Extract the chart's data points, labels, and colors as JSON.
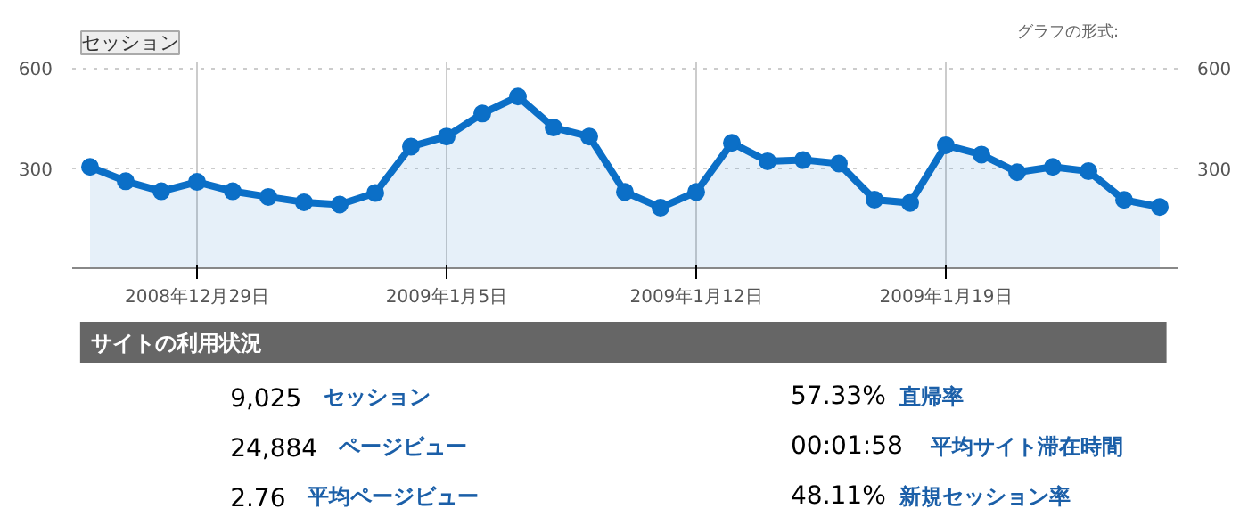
{
  "chart_data": [
    {
      "type": "area",
      "title": "セッション",
      "annotations": [
        "グラフの形式:"
      ],
      "x": [
        "2008-12-26",
        "2008-12-27",
        "2008-12-28",
        "2008-12-29",
        "2008-12-30",
        "2008-12-31",
        "2009-01-01",
        "2009-01-02",
        "2009-01-03",
        "2009-01-04",
        "2009-01-05",
        "2009-01-06",
        "2009-01-07",
        "2009-01-08",
        "2009-01-09",
        "2009-01-10",
        "2009-01-11",
        "2009-01-12",
        "2009-01-13",
        "2009-01-14",
        "2009-01-15",
        "2009-01-16",
        "2009-01-17",
        "2009-01-18",
        "2009-01-19",
        "2009-01-20",
        "2009-01-21",
        "2009-01-22",
        "2009-01-23",
        "2009-01-24",
        "2009-01-25"
      ],
      "series": [
        {
          "color": "#0b6fc7",
          "values": [
            304,
            261,
            231,
            259,
            231,
            214,
            198,
            191,
            226,
            365,
            395,
            464,
            515,
            422,
            395,
            229,
            182,
            229,
            376,
            321,
            325,
            314,
            206,
            196,
            369,
            341,
            288,
            304,
            291,
            205,
            184
          ]
        }
      ],
      "xlim": [
        "2008-12-25T12:00",
        "2009-01-25T12:00"
      ],
      "xticks": [
        {
          "value": "2008-12-29",
          "label": "2008年12月29日"
        },
        {
          "value": "2009-01-05",
          "label": "2009年1月5日"
        },
        {
          "value": "2009-01-12",
          "label": "2009年1月12日"
        },
        {
          "value": "2009-01-19",
          "label": "2009年1月19日"
        }
      ],
      "ylim": [
        0,
        620
      ],
      "yticks": [
        300,
        600
      ],
      "y2lim": [
        0,
        620
      ],
      "y2ticks": [
        300,
        600
      ],
      "grid": true,
      "marker": "circle",
      "line_style": "solid"
    },
    {
      "type": "other",
      "title": "サイトの利用状況",
      "annotations": [
        "9,025 セッション",
        "24,884 ページビュー",
        "2.76 平均ページビュー",
        "57.33% 直帰率",
        "00:01:58 平均サイト滞在時間",
        "48.11% 新規セッション率"
      ]
    }
  ]
}
